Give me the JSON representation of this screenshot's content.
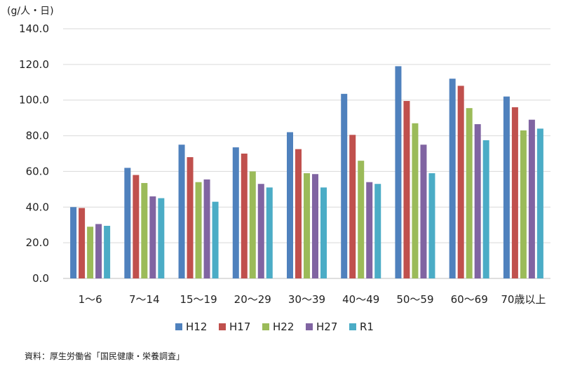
{
  "chart_data": {
    "type": "bar",
    "title": "",
    "ylabel": "(g/人・日)",
    "xlabel": "",
    "ylim": [
      0,
      140
    ],
    "yticks": [
      "0.0",
      "20.0",
      "40.0",
      "60.0",
      "80.0",
      "100.0",
      "120.0",
      "140.0"
    ],
    "grid": true,
    "legend": "bottom",
    "categories": [
      "1〜6",
      "7〜14",
      "15〜19",
      "20〜29",
      "30〜39",
      "40〜49",
      "50〜59",
      "60〜69",
      "70歳以上"
    ],
    "series": [
      {
        "name": "H12",
        "color": "#4F81BD",
        "values": [
          40.0,
          62.0,
          75.0,
          73.5,
          82.0,
          103.5,
          119.0,
          112.0,
          102.0
        ]
      },
      {
        "name": "H17",
        "color": "#C0504D",
        "values": [
          39.5,
          58.0,
          68.0,
          70.0,
          72.5,
          80.5,
          99.5,
          108.0,
          96.0
        ]
      },
      {
        "name": "H22",
        "color": "#9BBB59",
        "values": [
          29.0,
          53.5,
          54.0,
          60.0,
          59.0,
          66.0,
          87.0,
          95.5,
          83.0
        ]
      },
      {
        "name": "H27",
        "color": "#8064A2",
        "values": [
          30.5,
          46.0,
          55.5,
          53.0,
          58.5,
          54.0,
          75.0,
          86.5,
          89.0
        ]
      },
      {
        "name": "R1",
        "color": "#4BACC6",
        "values": [
          29.5,
          45.0,
          43.0,
          51.0,
          51.0,
          53.0,
          59.0,
          77.5,
          84.0
        ]
      }
    ]
  },
  "source": "資料：厚生労働省「国民健康・栄養調査」",
  "colors": {
    "grid": "#d9d9d9",
    "axis": "#bfbfbf"
  }
}
